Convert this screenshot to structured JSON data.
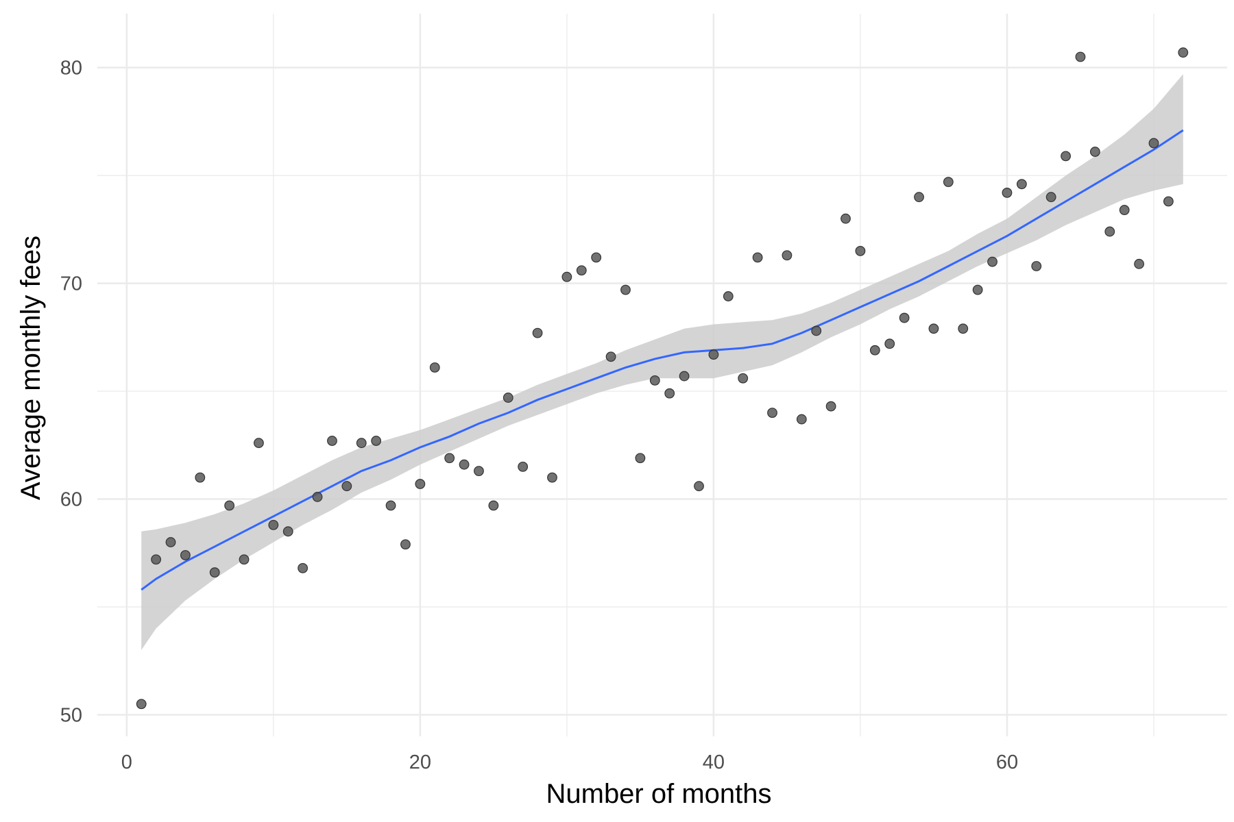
{
  "chart_data": {
    "type": "scatter",
    "title": "",
    "xlabel": "Number of months",
    "ylabel": "Average monthly fees",
    "xlim": [
      -2,
      75
    ],
    "ylim": [
      49,
      82.5
    ],
    "x_ticks": [
      0,
      20,
      40,
      60
    ],
    "x_tick_labels": [
      "0",
      "20",
      "40",
      "60"
    ],
    "x_minor_ticks": [
      10,
      30,
      50,
      70
    ],
    "y_ticks": [
      50,
      60,
      70,
      80
    ],
    "y_tick_labels": [
      "50",
      "60",
      "70",
      "80"
    ],
    "y_minor_ticks": [
      55,
      65,
      75
    ],
    "grid": true,
    "legend": "none",
    "colors": {
      "points": "#595959",
      "smooth_line": "#3366FF",
      "ribbon": "#cccccc",
      "grid": "#ebebeb"
    },
    "series": [
      {
        "type": "scatter",
        "x": [
          1,
          2,
          3,
          4,
          5,
          6,
          7,
          8,
          9,
          10,
          11,
          12,
          13,
          14,
          15,
          16,
          17,
          18,
          19,
          20,
          21,
          22,
          23,
          24,
          25,
          26,
          27,
          28,
          29,
          30,
          31,
          32,
          33,
          34,
          35,
          36,
          37,
          38,
          39,
          40,
          41,
          42,
          43,
          44,
          45,
          46,
          47,
          48,
          49,
          50,
          51,
          52,
          53,
          54,
          55,
          56,
          57,
          58,
          59,
          60,
          61,
          62,
          63,
          64,
          65,
          66,
          67,
          68,
          69,
          70,
          71,
          72
        ],
        "y": [
          50.5,
          57.2,
          58.0,
          57.4,
          61.0,
          56.6,
          59.7,
          57.2,
          62.6,
          58.8,
          58.5,
          56.8,
          60.1,
          62.7,
          60.6,
          62.6,
          62.7,
          59.7,
          57.9,
          60.7,
          66.1,
          61.9,
          61.6,
          61.3,
          59.7,
          64.7,
          61.5,
          67.7,
          61.0,
          70.3,
          70.6,
          71.2,
          66.6,
          69.7,
          61.9,
          65.5,
          64.9,
          65.7,
          60.6,
          66.7,
          69.4,
          65.6,
          71.2,
          64.0,
          71.3,
          63.7,
          67.8,
          64.3,
          73.0,
          71.5,
          66.9,
          67.2,
          68.4,
          74.0,
          67.9,
          74.7,
          67.9,
          69.7,
          71.0,
          74.2,
          74.6,
          70.8,
          74.0,
          75.9,
          80.5,
          76.1,
          72.4,
          73.4,
          70.9,
          76.5,
          73.8,
          80.7
        ]
      },
      {
        "type": "smooth",
        "x": [
          1,
          2,
          4,
          6,
          8,
          10,
          12,
          14,
          16,
          18,
          20,
          22,
          24,
          26,
          28,
          30,
          32,
          34,
          36,
          38,
          40,
          42,
          44,
          46,
          48,
          50,
          52,
          54,
          56,
          58,
          60,
          62,
          64,
          66,
          68,
          70,
          72
        ],
        "y": [
          55.8,
          56.3,
          57.1,
          57.8,
          58.5,
          59.2,
          59.9,
          60.6,
          61.3,
          61.8,
          62.4,
          62.9,
          63.5,
          64.0,
          64.6,
          65.1,
          65.6,
          66.1,
          66.5,
          66.8,
          66.9,
          67.0,
          67.2,
          67.7,
          68.3,
          68.9,
          69.5,
          70.1,
          70.8,
          71.5,
          72.2,
          73.0,
          73.8,
          74.6,
          75.4,
          76.2,
          77.1
        ],
        "lower": [
          53.0,
          54.0,
          55.3,
          56.3,
          57.2,
          58.0,
          58.8,
          59.5,
          60.3,
          60.9,
          61.6,
          62.2,
          62.8,
          63.4,
          63.9,
          64.4,
          64.9,
          65.3,
          65.6,
          65.6,
          65.6,
          65.9,
          66.2,
          66.8,
          67.5,
          68.1,
          68.8,
          69.4,
          70.1,
          70.8,
          71.4,
          72.0,
          72.7,
          73.3,
          73.9,
          74.3,
          74.6
        ],
        "upper": [
          58.5,
          58.6,
          58.9,
          59.3,
          59.8,
          60.4,
          61.1,
          61.8,
          62.4,
          62.8,
          63.2,
          63.7,
          64.2,
          64.7,
          65.3,
          65.8,
          66.3,
          66.9,
          67.4,
          67.9,
          68.1,
          68.2,
          68.3,
          68.6,
          69.1,
          69.7,
          70.3,
          70.9,
          71.5,
          72.3,
          73.0,
          74.0,
          75.0,
          75.9,
          76.9,
          78.1,
          79.7
        ]
      }
    ]
  }
}
